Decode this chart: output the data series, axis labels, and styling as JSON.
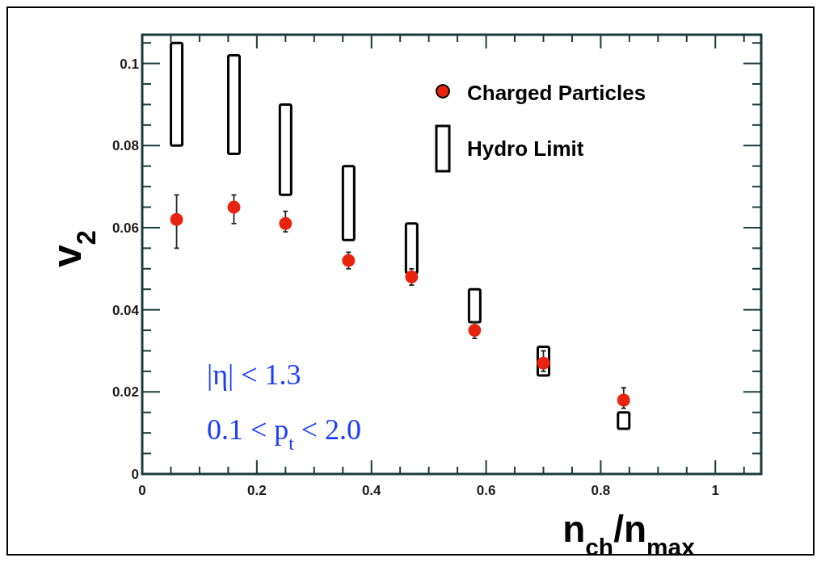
{
  "chart_data": {
    "type": "scatter",
    "xlabel": "n$_{ch}$/n$_{max}$",
    "ylabel": "v$_{2}$",
    "xlim": [
      0,
      1.08
    ],
    "ylim": [
      0,
      0.107
    ],
    "xticks": [
      0,
      {
        "value": 0.05,
        "label": null
      },
      {
        "value": 0.1,
        "label": null
      },
      {
        "value": 0.15,
        "label": null
      },
      0.2,
      {
        "value": 0.25,
        "label": null
      },
      {
        "value": 0.3,
        "label": null
      },
      {
        "value": 0.35,
        "label": null
      },
      0.4,
      {
        "value": 0.45,
        "label": null
      },
      {
        "value": 0.5,
        "label": null
      },
      {
        "value": 0.55,
        "label": null
      },
      0.6,
      {
        "value": 0.65,
        "label": null
      },
      {
        "value": 0.7,
        "label": null
      },
      {
        "value": 0.75,
        "label": null
      },
      0.8,
      {
        "value": 0.85,
        "label": null
      },
      {
        "value": 0.9,
        "label": null
      },
      {
        "value": 0.95,
        "label": null
      },
      1,
      {
        "value": 1.05,
        "label": null
      }
    ],
    "yticks": [
      0,
      {
        "value": 0.005,
        "label": null
      },
      {
        "value": 0.01,
        "label": null
      },
      {
        "value": 0.015,
        "label": null
      },
      0.02,
      {
        "value": 0.025,
        "label": null
      },
      {
        "value": 0.03,
        "label": null
      },
      {
        "value": 0.035,
        "label": null
      },
      0.04,
      {
        "value": 0.045,
        "label": null
      },
      {
        "value": 0.05,
        "label": null
      },
      {
        "value": 0.055,
        "label": null
      },
      0.06,
      {
        "value": 0.065,
        "label": null
      },
      {
        "value": 0.07,
        "label": null
      },
      {
        "value": 0.075,
        "label": null
      },
      0.08,
      {
        "value": 0.085,
        "label": null
      },
      {
        "value": 0.09,
        "label": null
      },
      {
        "value": 0.095,
        "label": null
      },
      0.1,
      {
        "value": 0.105,
        "label": null
      }
    ],
    "legend": "top right",
    "marker": "circle",
    "annotations": [
      "|η| < 1.3",
      "0.1 < p$_{t}$ < 2.0"
    ],
    "series": [
      {
        "type": "bar",
        "name": "Hydro Limit",
        "color": "#000000",
        "x": [
          0.06,
          0.16,
          0.25,
          0.36,
          0.47,
          0.58,
          0.7,
          0.84
        ],
        "base": [
          0.08,
          0.078,
          0.068,
          0.057,
          0.049,
          0.037,
          0.024,
          0.011
        ],
        "values": [
          0.025,
          0.024,
          0.022,
          0.018,
          0.012,
          0.008,
          0.007,
          0.004
        ]
      },
      {
        "name": "Charged Particles",
        "color": "#e8230e",
        "x": [
          0.06,
          0.16,
          0.25,
          0.36,
          0.47,
          0.58,
          0.7,
          0.84
        ],
        "values": [
          0.062,
          0.065,
          0.061,
          0.052,
          0.048,
          0.035,
          0.027,
          0.018
        ],
        "errors": [
          [
            0.055,
            0.068
          ],
          [
            0.061,
            0.068
          ],
          [
            0.059,
            0.064
          ],
          [
            0.05,
            0.054
          ],
          [
            0.046,
            0.05
          ],
          [
            0.033,
            0.037
          ],
          [
            0.025,
            0.03
          ],
          [
            0.016,
            0.021
          ]
        ]
      }
    ]
  }
}
